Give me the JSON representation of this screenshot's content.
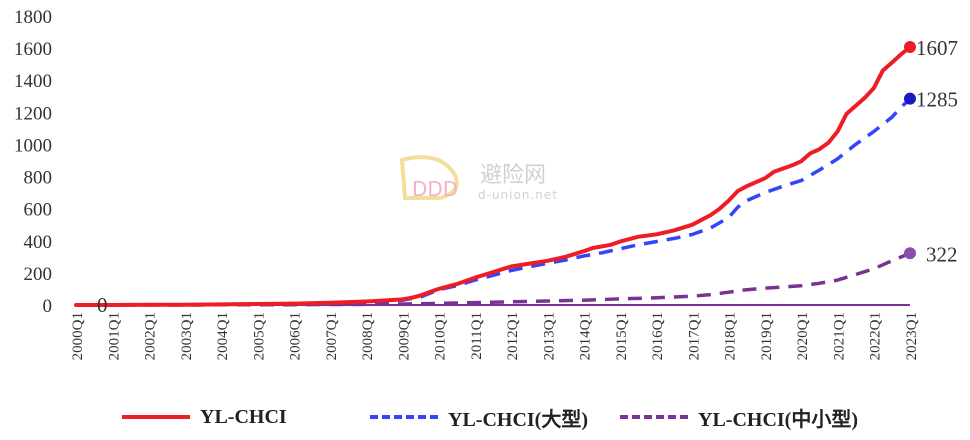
{
  "chart_data": {
    "type": "line",
    "title": "",
    "xlabel": "",
    "ylabel": "",
    "ylim": [
      0,
      1800
    ],
    "yticks": [
      0,
      200,
      400,
      600,
      800,
      1000,
      1200,
      1400,
      1600,
      1800
    ],
    "x_tick_labels": [
      "2000Q1",
      "2001Q1",
      "2002Q1",
      "2003Q1",
      "2004Q1",
      "2005Q1",
      "2006Q1",
      "2007Q1",
      "2008Q1",
      "2009Q1",
      "2010Q1",
      "2011Q1",
      "2012Q1",
      "2013Q1",
      "2014Q1",
      "2015Q1",
      "2016Q1",
      "2017Q1",
      "2018Q1",
      "2019Q1",
      "2020Q1",
      "2021Q1",
      "2022Q1",
      "2023Q1"
    ],
    "x_start_year": 2000,
    "x_end_year": 2023,
    "series": [
      {
        "name": "YL-CHCI",
        "color": "#ee1c25",
        "style": "solid",
        "end_label": "1607",
        "points": [
          [
            2000,
            0
          ],
          [
            2001,
            0
          ],
          [
            2002,
            1
          ],
          [
            2003,
            2
          ],
          [
            2004,
            4
          ],
          [
            2005,
            6
          ],
          [
            2006,
            9
          ],
          [
            2007,
            14
          ],
          [
            2008,
            22
          ],
          [
            2008.5,
            28
          ],
          [
            2009,
            35
          ],
          [
            2009.25,
            45
          ],
          [
            2009.5,
            60
          ],
          [
            2010,
            100
          ],
          [
            2010.5,
            130
          ],
          [
            2011,
            170
          ],
          [
            2011.5,
            205
          ],
          [
            2012,
            240
          ],
          [
            2012.5,
            258
          ],
          [
            2013,
            275
          ],
          [
            2013.5,
            300
          ],
          [
            2014,
            335
          ],
          [
            2014.25,
            355
          ],
          [
            2014.75,
            375
          ],
          [
            2015,
            395
          ],
          [
            2015.5,
            425
          ],
          [
            2016,
            440
          ],
          [
            2016.5,
            465
          ],
          [
            2017,
            500
          ],
          [
            2017.5,
            560
          ],
          [
            2017.75,
            600
          ],
          [
            2018,
            650
          ],
          [
            2018.25,
            710
          ],
          [
            2018.5,
            740
          ],
          [
            2019,
            790
          ],
          [
            2019.25,
            830
          ],
          [
            2019.5,
            850
          ],
          [
            2019.75,
            870
          ],
          [
            2020,
            895
          ],
          [
            2020.25,
            945
          ],
          [
            2020.5,
            970
          ],
          [
            2020.75,
            1010
          ],
          [
            2021,
            1080
          ],
          [
            2021.25,
            1190
          ],
          [
            2021.5,
            1240
          ],
          [
            2021.75,
            1290
          ],
          [
            2022,
            1350
          ],
          [
            2022.25,
            1460
          ],
          [
            2022.5,
            1510
          ],
          [
            2022.75,
            1560
          ],
          [
            2023,
            1607
          ]
        ]
      },
      {
        "name": "YL-CHCI(大型)",
        "color": "#3344ff",
        "style": "dashed",
        "end_label": "1285",
        "points": [
          [
            2000,
            0
          ],
          [
            2001,
            0
          ],
          [
            2002,
            1
          ],
          [
            2003,
            2
          ],
          [
            2004,
            3
          ],
          [
            2005,
            5
          ],
          [
            2006,
            8
          ],
          [
            2007,
            12
          ],
          [
            2008,
            19
          ],
          [
            2008.5,
            24
          ],
          [
            2009,
            30
          ],
          [
            2009.5,
            50
          ],
          [
            2010,
            95
          ],
          [
            2010.5,
            120
          ],
          [
            2011,
            155
          ],
          [
            2011.5,
            185
          ],
          [
            2012,
            215
          ],
          [
            2012.5,
            238
          ],
          [
            2013,
            260
          ],
          [
            2013.5,
            280
          ],
          [
            2014,
            305
          ],
          [
            2014.5,
            325
          ],
          [
            2015,
            350
          ],
          [
            2015.5,
            375
          ],
          [
            2016,
            395
          ],
          [
            2016.5,
            415
          ],
          [
            2017,
            440
          ],
          [
            2017.5,
            480
          ],
          [
            2018,
            545
          ],
          [
            2018.25,
            610
          ],
          [
            2018.5,
            650
          ],
          [
            2019,
            700
          ],
          [
            2019.5,
            740
          ],
          [
            2020,
            775
          ],
          [
            2020.5,
            840
          ],
          [
            2021,
            910
          ],
          [
            2021.5,
            1000
          ],
          [
            2022,
            1080
          ],
          [
            2022.5,
            1170
          ],
          [
            2022.75,
            1230
          ],
          [
            2023,
            1285
          ]
        ]
      },
      {
        "name": "YL-CHCI(中小型)",
        "color": "#7b3294",
        "style": "dashed",
        "end_label": "322",
        "points": [
          [
            2000,
            0
          ],
          [
            2001,
            0
          ],
          [
            2002,
            0
          ],
          [
            2003,
            0
          ],
          [
            2004,
            1
          ],
          [
            2005,
            1
          ],
          [
            2006,
            2
          ],
          [
            2007,
            3
          ],
          [
            2008,
            4
          ],
          [
            2009,
            6
          ],
          [
            2010,
            10
          ],
          [
            2011,
            15
          ],
          [
            2012,
            20
          ],
          [
            2013,
            25
          ],
          [
            2014,
            30
          ],
          [
            2015,
            38
          ],
          [
            2016,
            45
          ],
          [
            2017,
            55
          ],
          [
            2017.5,
            65
          ],
          [
            2018,
            80
          ],
          [
            2018.5,
            95
          ],
          [
            2019,
            105
          ],
          [
            2019.5,
            112
          ],
          [
            2020,
            120
          ],
          [
            2020.5,
            135
          ],
          [
            2021,
            155
          ],
          [
            2021.5,
            190
          ],
          [
            2022,
            225
          ],
          [
            2022.5,
            275
          ],
          [
            2023,
            322
          ]
        ]
      }
    ],
    "annotations": [
      "0"
    ]
  },
  "watermark": {
    "chinese": "避险网",
    "site": "d-union.net"
  }
}
